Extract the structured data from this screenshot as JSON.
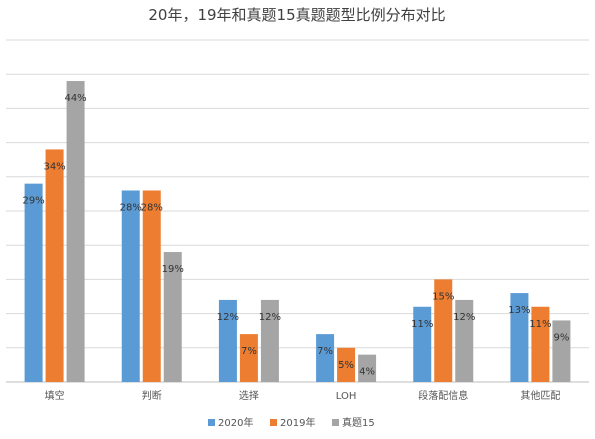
{
  "chart_data": {
    "type": "bar",
    "title": "20年，19年和真题15真题题型比例分布对比",
    "xlabel": "",
    "ylabel": "",
    "categories": [
      "填空",
      "判断",
      "选择",
      "LOH",
      "段落配信息",
      "其他匹配"
    ],
    "series": [
      {
        "name": "2020年",
        "values": [
          29,
          28,
          12,
          7,
          11,
          13
        ],
        "labels": [
          "29%",
          "28%",
          "12%",
          "7%",
          "11%",
          "13%"
        ]
      },
      {
        "name": "2019年",
        "values": [
          34,
          28,
          7,
          5,
          15,
          11
        ],
        "labels": [
          "34%",
          "28%",
          "7%",
          "5%",
          "15%",
          "11%"
        ]
      },
      {
        "name": "真题15",
        "values": [
          44,
          19,
          12,
          4,
          12,
          9
        ],
        "labels": [
          "44%",
          "19%",
          "12%",
          "4%",
          "12%",
          "9%"
        ]
      }
    ],
    "ylim": [
      0,
      50
    ],
    "grid": true,
    "legend": "bottom",
    "colors": [
      "#5b9bd5",
      "#ed7d31",
      "#a5a5a5"
    ]
  }
}
